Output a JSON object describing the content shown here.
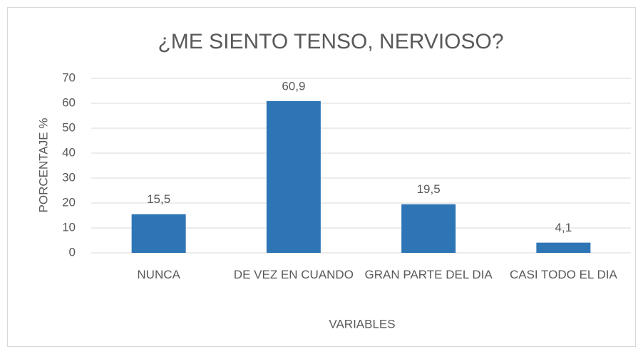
{
  "chart_data": {
    "type": "bar",
    "title": "¿ME SIENTO TENSO, NERVIOSO?",
    "categories": [
      "NUNCA",
      "DE VEZ EN CUANDO",
      "GRAN PARTE DEL DIA",
      "CASI TODO EL DIA"
    ],
    "values": [
      15.5,
      60.9,
      19.5,
      4.1
    ],
    "value_labels": [
      "15,5",
      "60,9",
      "19,5",
      "4,1"
    ],
    "color": "#2e75b6",
    "ylim": [
      0,
      70
    ],
    "yticks": [
      0,
      10,
      20,
      30,
      40,
      50,
      60,
      70
    ],
    "grid": true,
    "x_label": "VARIABLES",
    "y_label": "PORCENTAJE %"
  }
}
